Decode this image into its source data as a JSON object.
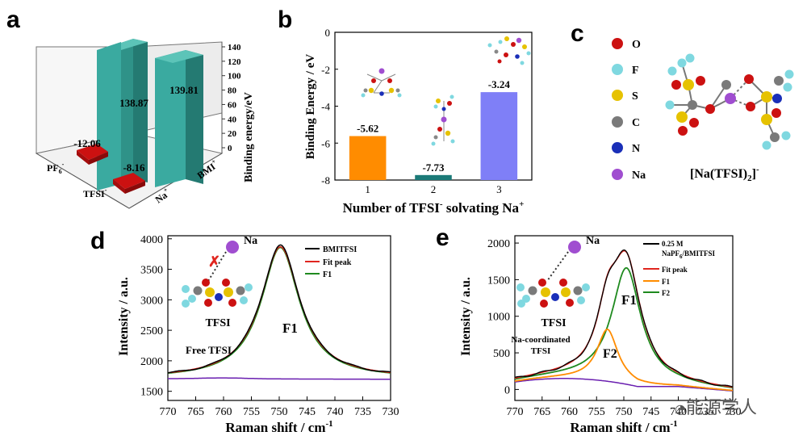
{
  "panels": {
    "a": {
      "label": "a"
    },
    "b": {
      "label": "b"
    },
    "c": {
      "label": "c"
    },
    "d": {
      "label": "d"
    },
    "e": {
      "label": "e"
    }
  },
  "colors": {
    "teal": "#3aaaa0",
    "red": "#cc1111",
    "orange": "#ff8c00",
    "dark_teal": "#1b7a78",
    "periwinkle": "#7f7ff7",
    "black": "#000000",
    "fit_red": "#e0261f",
    "green": "#1f8a1f",
    "orange_line": "#ff8c00",
    "purple": "#6a1fb0"
  },
  "chart_data": [
    {
      "id": "a",
      "type": "bar",
      "x_categories": [
        "PF6-",
        "TFSI-"
      ],
      "y_categories": [
        "Na+",
        "BMI+"
      ],
      "values": [
        {
          "x": "PF6-",
          "y": "Na+",
          "value": -12.06
        },
        {
          "x": "TFSI-",
          "y": "Na+",
          "value": -8.16
        },
        {
          "x": "PF6-",
          "y": "BMI+",
          "value": 138.87
        },
        {
          "x": "TFSI-",
          "y": "BMI+",
          "value": 139.81
        }
      ],
      "zlabel": "Binding energy/eV",
      "zticks": [
        "0",
        "20",
        "40",
        "60",
        "80",
        "100",
        "120",
        "140"
      ],
      "category_labels": {
        "pf6": "PF",
        "pf6_sub": "6",
        "pf6_sup": "-",
        "tfsi": "TFSI",
        "tfsi_sup": "-",
        "na": "Na",
        "na_sup": "+",
        "bmi": "BMI",
        "bmi_sup": "+"
      },
      "value_labels": [
        "138.87",
        "139.81",
        "-12.06",
        "-8.16"
      ]
    },
    {
      "id": "b",
      "type": "bar",
      "categories": [
        "1",
        "2",
        "3"
      ],
      "values": [
        -5.62,
        -7.73,
        -3.24
      ],
      "value_labels": [
        "-5.62",
        "-7.73",
        "-3.24"
      ],
      "ylabel": "Binding Energy / eV",
      "xlabel": "Number of TFSI",
      "xlabel_sup": "-",
      "xlabel_rest": " solvating Na",
      "xlabel_sup2": "+",
      "ylim": [
        -8,
        0
      ],
      "yticks": [
        "0",
        "-2",
        "-4",
        "-6",
        "-8"
      ]
    },
    {
      "id": "d",
      "type": "line",
      "x_range": [
        770,
        730
      ],
      "ylim": [
        1350,
        4050
      ],
      "xticks": [
        "770",
        "765",
        "760",
        "755",
        "750",
        "745",
        "740",
        "735",
        "730"
      ],
      "yticks": [
        "1500",
        "2000",
        "2500",
        "3000",
        "3500",
        "4000"
      ],
      "xlabel": "Raman shift / cm",
      "xlabel_sup": "-1",
      "ylabel": "Intensity / a.u.",
      "series": [
        {
          "name": "BMITFSI",
          "peak_center": 749.8,
          "peak_height": 3890,
          "baseline": 1710,
          "width": 4.3
        },
        {
          "name": "Fit peak",
          "peak_center": 749.8,
          "peak_height": 3870,
          "baseline": 1710,
          "width": 4.3
        },
        {
          "name": "F1",
          "peak_center": 749.8,
          "peak_height": 3860,
          "baseline": 1710,
          "width": 4.2
        }
      ],
      "annotations": {
        "peak": "F1",
        "species": "TFSI",
        "free": "Free TFSI",
        "ion": "Na"
      }
    },
    {
      "id": "e",
      "type": "line",
      "x_range": [
        770,
        730
      ],
      "ylim": [
        -150,
        2100
      ],
      "xticks": [
        "770",
        "765",
        "760",
        "755",
        "750",
        "745",
        "740",
        "735",
        "730"
      ],
      "yticks": [
        "0",
        "500",
        "1000",
        "1500",
        "2000"
      ],
      "xlabel": "Raman shift / cm",
      "xlabel_sup": "-1",
      "ylabel": "Intensity / a.u.",
      "series": [
        {
          "name": "0.25 M NaPF6/BMITFSI"
        },
        {
          "name": "Fit peak"
        },
        {
          "name": "F1",
          "peak_center": 749.5,
          "peak_height": 1740
        },
        {
          "name": "F2",
          "peak_center": 753.0,
          "peak_height": 860
        }
      ],
      "legend": {
        "l1": "0.25 M",
        "l2a": "NaPF",
        "l2sub": "6",
        "l2b": "/BMITFSI",
        "fit": "Fit peak",
        "f1": "F1",
        "f2": "F2"
      },
      "annotations": {
        "peak1": "F1",
        "peak2": "F2",
        "species": "TFSI",
        "coord1": "Na-coordinated",
        "coord2": "TFSI",
        "ion": "Na"
      }
    }
  ],
  "panel_c": {
    "legend": [
      "O",
      "F",
      "S",
      "C",
      "N",
      "Na"
    ],
    "formula_a": "[Na(TFSI)",
    "formula_sub": "2",
    "formula_b": "]",
    "formula_sup": "-"
  },
  "watermark": "能源学人"
}
